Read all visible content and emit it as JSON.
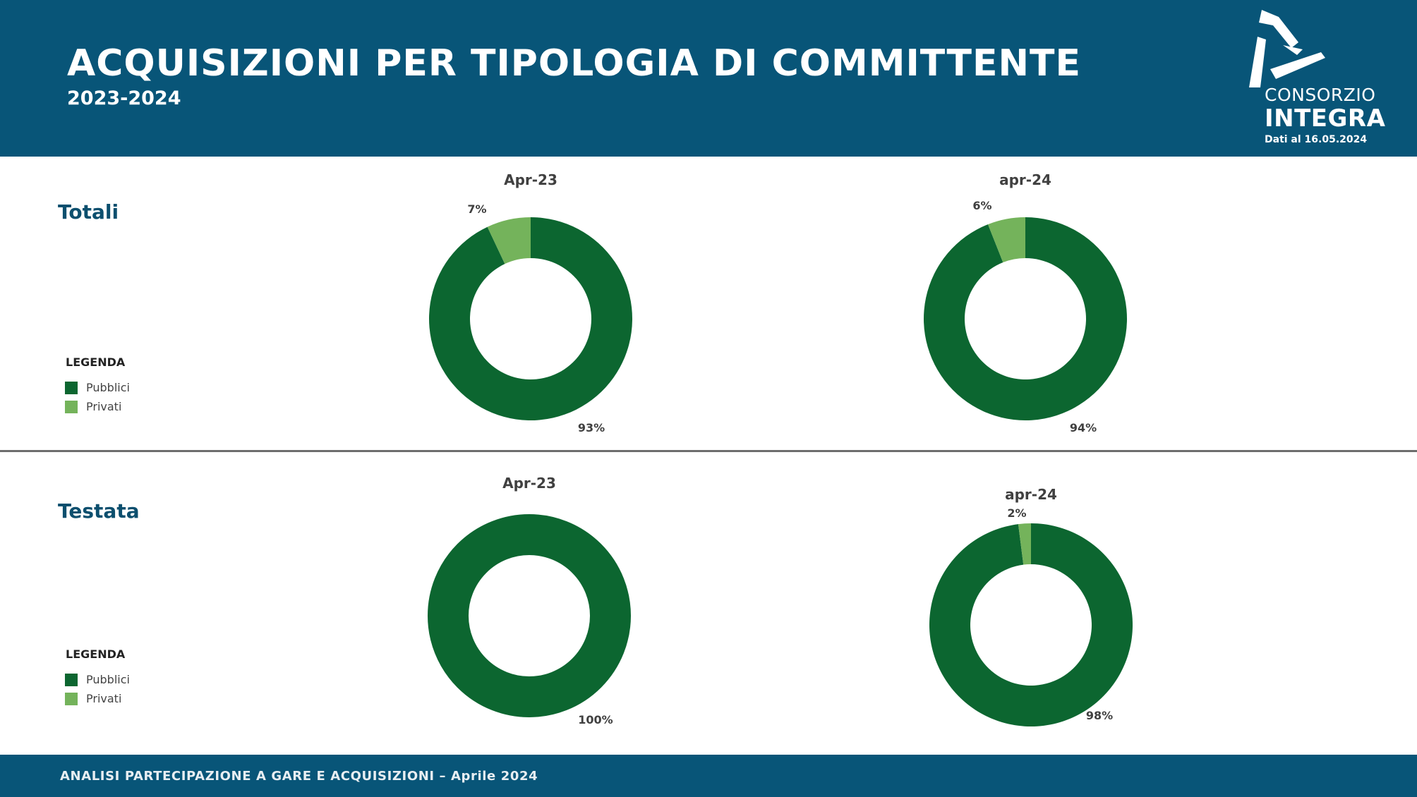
{
  "header": {
    "title": "ACQUISIZIONI PER TIPOLOGIA DI COMMITTENTE",
    "subtitle": "2023-2024",
    "logo_top": "CONSORZIO",
    "logo_bottom": "INTEGRA",
    "date_note": "Dati al 16.05.2024"
  },
  "sections": [
    {
      "title": "Totali",
      "legend_title": "LEGENDA",
      "legend": [
        {
          "label": "Pubblici",
          "color": "#0c6630"
        },
        {
          "label": "Privati",
          "color": "#74b35b"
        }
      ]
    },
    {
      "title": "Testata",
      "legend_title": "LEGENDA",
      "legend": [
        {
          "label": "Pubblici",
          "color": "#0c6630"
        },
        {
          "label": "Privati",
          "color": "#74b35b"
        }
      ]
    }
  ],
  "chart_data": [
    {
      "type": "pie",
      "title": "Apr-23",
      "section": "Totali",
      "categories": [
        "Pubblici",
        "Privati"
      ],
      "values": [
        93,
        7
      ],
      "labels": [
        "93%",
        "7%"
      ],
      "colors": [
        "#0c6630",
        "#74b35b"
      ]
    },
    {
      "type": "pie",
      "title": "apr-24",
      "section": "Totali",
      "categories": [
        "Pubblici",
        "Privati"
      ],
      "values": [
        94,
        6
      ],
      "labels": [
        "94%",
        "6%"
      ],
      "colors": [
        "#0c6630",
        "#74b35b"
      ]
    },
    {
      "type": "pie",
      "title": "Apr-23",
      "section": "Testata",
      "categories": [
        "Pubblici",
        "Privati"
      ],
      "values": [
        100,
        0
      ],
      "labels": [
        "100%",
        ""
      ],
      "colors": [
        "#0c6630",
        "#74b35b"
      ]
    },
    {
      "type": "pie",
      "title": "apr-24",
      "section": "Testata",
      "categories": [
        "Pubblici",
        "Privati"
      ],
      "values": [
        98,
        2
      ],
      "labels": [
        "98%",
        "2%"
      ],
      "colors": [
        "#0c6630",
        "#74b35b"
      ]
    }
  ],
  "footer": {
    "text": "ANALISI PARTECIPAZIONE A GARE E ACQUISIZIONI – Aprile 2024"
  }
}
